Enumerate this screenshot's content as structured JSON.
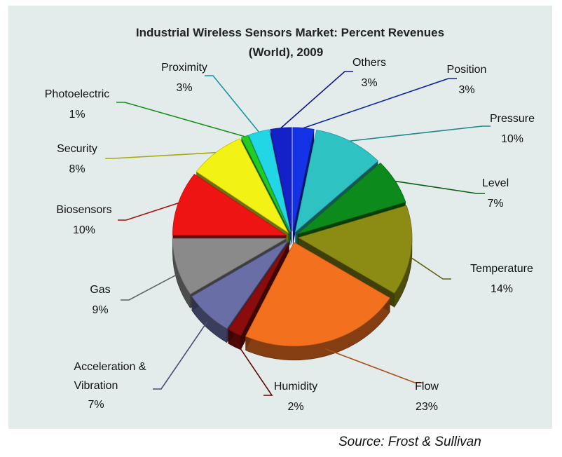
{
  "chart_data": {
    "type": "pie",
    "style": "3d-exploded",
    "title_line1": "Industrial Wireless Sensors Market: Percent Revenues",
    "title_line2": "(World), 2009",
    "slices": [
      {
        "label": "Position",
        "value": 3,
        "value_label": "3%",
        "color": "#1432e6"
      },
      {
        "label": "Pressure",
        "value": 10,
        "value_label": "10%",
        "color": "#2fc2c2"
      },
      {
        "label": "Level",
        "value": 7,
        "value_label": "7%",
        "color": "#0c8a1c"
      },
      {
        "label": "Temperature",
        "value": 14,
        "value_label": "14%",
        "color": "#8c8c14"
      },
      {
        "label": "Flow",
        "value": 23,
        "value_label": "23%",
        "color": "#f2701e"
      },
      {
        "label": "Humidity",
        "value": 2,
        "value_label": "2%",
        "color": "#8a0c0c"
      },
      {
        "label": "Acceleration & Vibration",
        "label_line1": "Acceleration &",
        "label_line2": "Vibration",
        "value": 7,
        "value_label": "7%",
        "color": "#6a6ea6"
      },
      {
        "label": "Gas",
        "value": 9,
        "value_label": "9%",
        "color": "#8a8a8a"
      },
      {
        "label": "Biosensors",
        "value": 10,
        "value_label": "10%",
        "color": "#ee1414"
      },
      {
        "label": "Security",
        "value": 8,
        "value_label": "8%",
        "color": "#f2f214"
      },
      {
        "label": "Photoelectric",
        "value": 1,
        "value_label": "1%",
        "color": "#22cc22"
      },
      {
        "label": "Proximity",
        "value": 3,
        "value_label": "3%",
        "color": "#22d6e6"
      },
      {
        "label": "Others",
        "value": 3,
        "value_label": "3%",
        "color": "#1420c8"
      }
    ]
  },
  "source_note": "Source: Frost & Sullivan"
}
